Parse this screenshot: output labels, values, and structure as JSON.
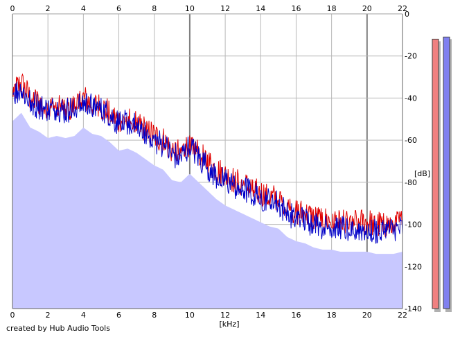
{
  "chart_data": {
    "type": "area",
    "xlabel": "[kHz]",
    "ylabel": "[dB]",
    "xlim": [
      0,
      22
    ],
    "ylim": [
      -140,
      0
    ],
    "x_ticks": [
      0,
      2,
      4,
      6,
      8,
      10,
      12,
      14,
      16,
      18,
      20,
      22
    ],
    "y_ticks": [
      0,
      -20,
      -40,
      -60,
      -80,
      -100,
      -120,
      -140
    ],
    "x_tick_labels": [
      "0",
      "2",
      "4",
      "6",
      "8",
      "10",
      "12",
      "14",
      "16",
      "18",
      "20",
      "22"
    ],
    "y_tick_labels": [
      "0",
      "-20",
      "-40",
      "-60",
      "-80",
      "-100",
      "-120",
      "-140"
    ],
    "grid": true,
    "series": [
      {
        "color": "#e00000",
        "x": [
          0,
          0.5,
          1,
          1.5,
          2,
          2.5,
          3,
          3.5,
          4,
          4.5,
          5,
          5.5,
          6,
          6.5,
          7,
          7.5,
          8,
          8.5,
          9,
          9.5,
          10,
          10.5,
          11,
          11.5,
          12,
          12.5,
          13,
          13.5,
          14,
          14.5,
          15,
          15.5,
          16,
          16.5,
          17,
          17.5,
          18,
          18.5,
          19,
          19.5,
          20,
          20.5,
          21,
          21.5,
          22
        ],
        "values": [
          -37,
          -33,
          -40,
          -42,
          -45,
          -44,
          -45,
          -44,
          -40,
          -43,
          -44,
          -47,
          -51,
          -50,
          -52,
          -55,
          -58,
          -60,
          -65,
          -66,
          -62,
          -66,
          -70,
          -74,
          -77,
          -79,
          -81,
          -83,
          -85,
          -87,
          -88,
          -92,
          -94,
          -95,
          -97,
          -98,
          -98,
          -99,
          -99,
          -99,
          -99,
          -100,
          -100,
          -100,
          -99
        ]
      },
      {
        "color": "#0000c8",
        "x": [
          0,
          0.5,
          1,
          1.5,
          2,
          2.5,
          3,
          3.5,
          4,
          4.5,
          5,
          5.5,
          6,
          6.5,
          7,
          7.5,
          8,
          8.5,
          9,
          9.5,
          10,
          10.5,
          11,
          11.5,
          12,
          12.5,
          13,
          13.5,
          14,
          14.5,
          15,
          15.5,
          16,
          16.5,
          17,
          17.5,
          18,
          18.5,
          19,
          19.5,
          20,
          20.5,
          21,
          21.5,
          22
        ],
        "values": [
          -38,
          -36,
          -42,
          -44,
          -46,
          -45,
          -46,
          -45,
          -42,
          -44,
          -46,
          -48,
          -52,
          -51,
          -53,
          -56,
          -60,
          -62,
          -67,
          -68,
          -63,
          -68,
          -73,
          -77,
          -79,
          -82,
          -83,
          -85,
          -87,
          -89,
          -90,
          -95,
          -97,
          -98,
          -100,
          -101,
          -101,
          -102,
          -102,
          -102,
          -102,
          -103,
          -103,
          -103,
          -102
        ]
      }
    ],
    "fill_color": "#c8c8ff",
    "level_meters": [
      {
        "color": "#f08080",
        "value_db": -12
      },
      {
        "color": "#8080f0",
        "value_db": -11
      }
    ]
  },
  "footer": {
    "credit": "created by Hub Audio Tools"
  }
}
